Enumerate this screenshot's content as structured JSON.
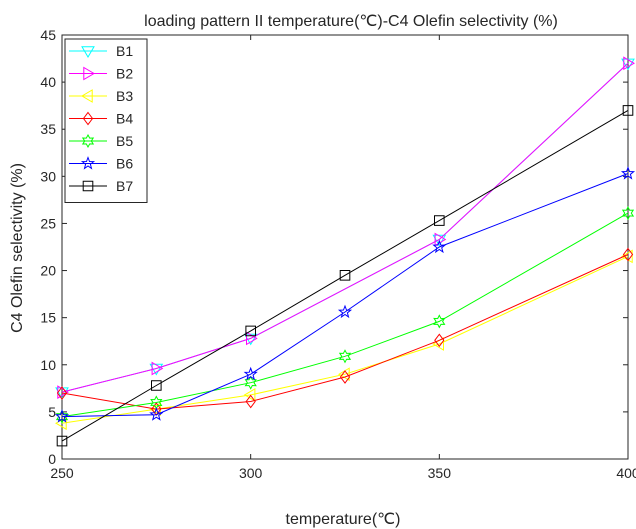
{
  "chart_data": {
    "type": "line",
    "title": "loading pattern II  temperature(℃)-C4 Olefin selectivity (%)",
    "xlabel": "temperature(℃)",
    "ylabel": "C4 Olefin selectivity (%)",
    "xlim": [
      250,
      400
    ],
    "ylim": [
      0,
      45
    ],
    "xticks": [
      250,
      300,
      350,
      400
    ],
    "yticks": [
      0,
      5,
      10,
      15,
      20,
      25,
      30,
      35,
      40,
      45
    ],
    "x": [
      250,
      275,
      300,
      325,
      350,
      400
    ],
    "grid": false,
    "legend_position": "top-left",
    "series": [
      {
        "name": "B1",
        "color": "#00ffff",
        "marker": "triangle-down",
        "values": [
          7.1,
          9.6,
          12.8,
          null,
          23.3,
          42.0
        ]
      },
      {
        "name": "B2",
        "color": "#ff00ff",
        "marker": "triangle-right",
        "values": [
          7.1,
          9.6,
          12.8,
          null,
          23.3,
          42.0
        ]
      },
      {
        "name": "B3",
        "color": "#ffff00",
        "marker": "triangle-left",
        "values": [
          3.8,
          5.3,
          6.8,
          9.0,
          12.2,
          21.5
        ]
      },
      {
        "name": "B4",
        "color": "#ff0000",
        "marker": "diamond",
        "values": [
          7.0,
          5.3,
          6.1,
          8.7,
          12.6,
          21.7
        ]
      },
      {
        "name": "B5",
        "color": "#00ff00",
        "marker": "hexagram",
        "values": [
          4.5,
          6.0,
          8.1,
          10.9,
          14.6,
          26.1
        ]
      },
      {
        "name": "B6",
        "color": "#0000ff",
        "marker": "pentagram",
        "values": [
          4.5,
          4.7,
          9.0,
          15.6,
          22.5,
          30.3
        ]
      },
      {
        "name": "B7",
        "color": "#000000",
        "marker": "square",
        "values": [
          1.9,
          7.8,
          13.6,
          19.5,
          25.3,
          37.0
        ]
      }
    ]
  }
}
